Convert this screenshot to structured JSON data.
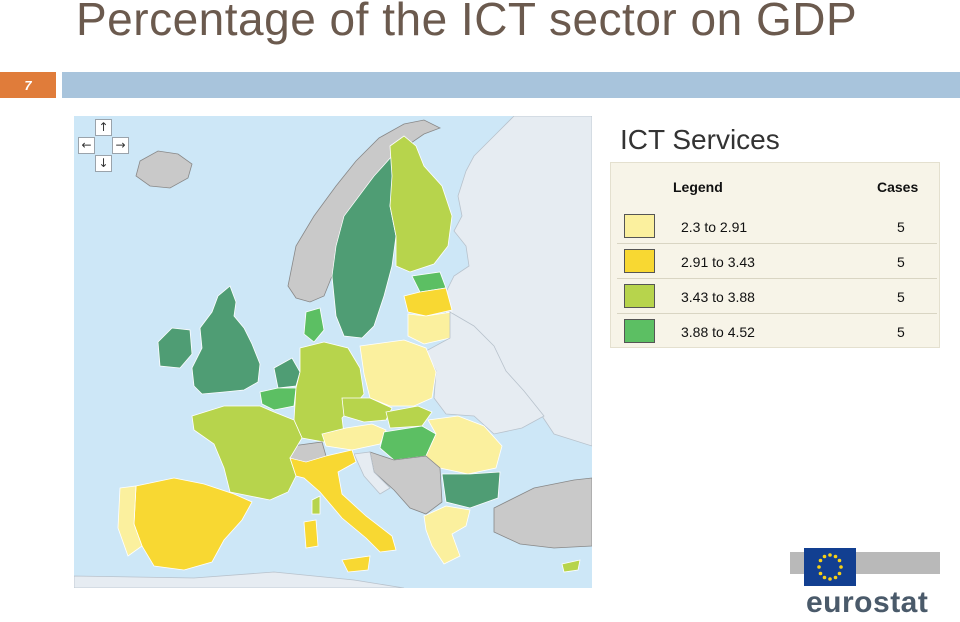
{
  "slide": {
    "title": "Percentage of the ICT sector on GDP",
    "number": "7",
    "subtitle": "ICT Services"
  },
  "map_nav": {
    "up": "↑",
    "left": "←",
    "right": "→",
    "down": "↓"
  },
  "legend": {
    "header_legend": "Legend",
    "header_cases": "Cases",
    "rows": [
      {
        "range": "2.3  to  2.91",
        "cases": "5",
        "color": "#fbf09e"
      },
      {
        "range": "2.91  to  3.43",
        "cases": "5",
        "color": "#f8d832"
      },
      {
        "range": "3.43  to  3.88",
        "cases": "5",
        "color": "#b7d44c"
      },
      {
        "range": "3.88  to  4.52",
        "cases": "5",
        "color": "#5cbf63"
      }
    ]
  },
  "map_colors": {
    "sea": "#cde7f7",
    "no_data": "#c9c9c9",
    "non_eu": "#e6ecf2",
    "dark_green": "#4f9d74"
  },
  "logo": {
    "text": "eurostat"
  }
}
